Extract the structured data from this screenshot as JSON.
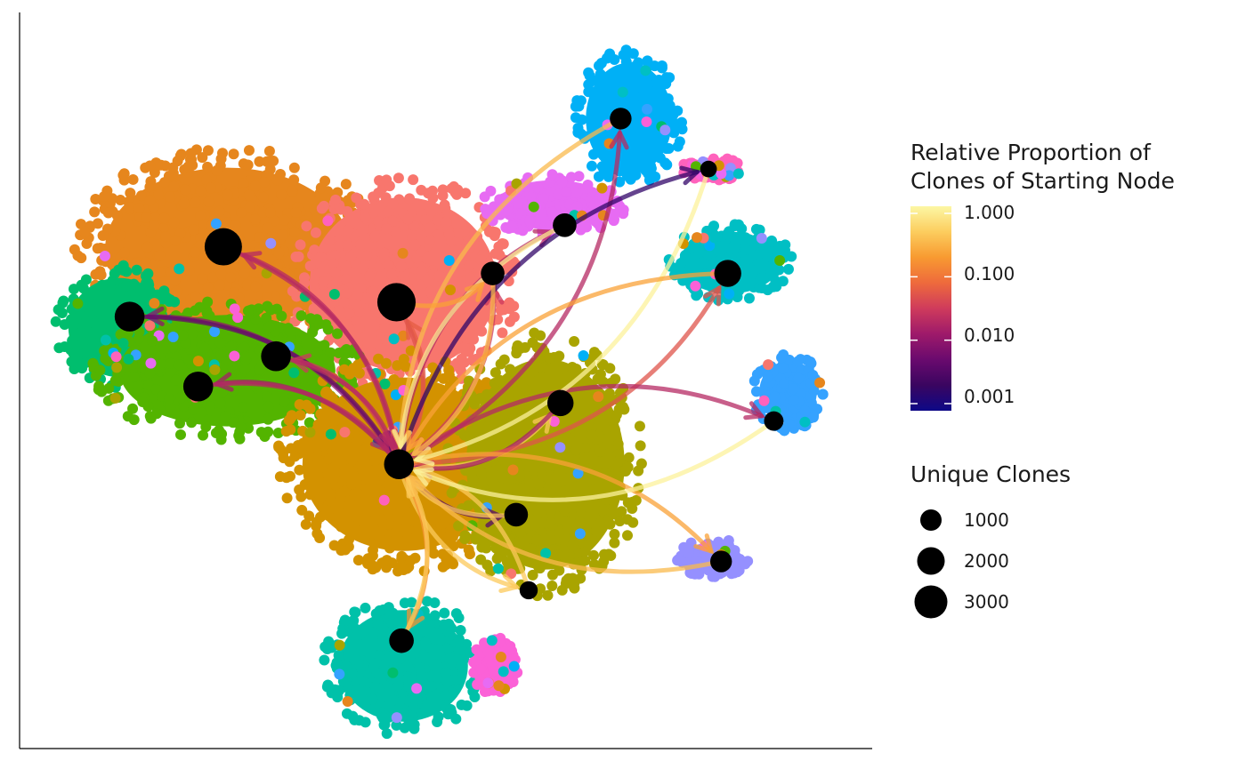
{
  "chart_data": {
    "type": "scatter",
    "title": "",
    "xlabel": "",
    "ylabel": "",
    "xlim": [
      0,
      100
    ],
    "ylim": [
      0,
      100
    ],
    "clusters": [
      {
        "color": "#E6861D",
        "shape": "blob",
        "cx": 24,
        "cy": 68,
        "rx": 17,
        "ry": 13
      },
      {
        "color": "#F8766D",
        "shape": "blob",
        "cx": 45,
        "cy": 63,
        "rx": 13,
        "ry": 14
      },
      {
        "color": "#00BE6E",
        "shape": "blob",
        "cx": 11,
        "cy": 57,
        "rx": 7,
        "ry": 8
      },
      {
        "color": "#53B400",
        "shape": "blob",
        "cx": 24,
        "cy": 51,
        "rx": 15,
        "ry": 9
      },
      {
        "color": "#D39200",
        "shape": "blob",
        "cx": 45,
        "cy": 38,
        "rx": 14,
        "ry": 14
      },
      {
        "color": "#A9A400",
        "shape": "blob",
        "cx": 62,
        "cy": 38,
        "rx": 11,
        "ry": 17
      },
      {
        "color": "#00C1A9",
        "shape": "blob",
        "cx": 45,
        "cy": 10,
        "rx": 9,
        "ry": 9
      },
      {
        "color": "#FB61D7",
        "shape": "blob",
        "cx": 56,
        "cy": 10,
        "rx": 2.5,
        "ry": 4
      },
      {
        "color": "#00B0F6",
        "shape": "blob",
        "cx": 72,
        "cy": 86,
        "rx": 6,
        "ry": 9
      },
      {
        "color": "#E76BF3",
        "shape": "blob",
        "cx": 63,
        "cy": 74,
        "rx": 8,
        "ry": 4
      },
      {
        "color": "#FF62BC",
        "shape": "blob",
        "cx": 82,
        "cy": 79,
        "rx": 3.5,
        "ry": 1.5
      },
      {
        "color": "#00BFC4",
        "shape": "blob",
        "cx": 84,
        "cy": 66,
        "rx": 7,
        "ry": 5
      },
      {
        "color": "#35A2FF",
        "shape": "blob",
        "cx": 91,
        "cy": 48,
        "rx": 4,
        "ry": 5
      },
      {
        "color": "#9590FF",
        "shape": "blob",
        "cx": 82,
        "cy": 25,
        "rx": 4,
        "ry": 2.5
      }
    ],
    "nodes": [
      {
        "id": "n1",
        "x": 23.5,
        "y": 68.2,
        "clones": 3000
      },
      {
        "id": "n2",
        "x": 44.2,
        "y": 60.5,
        "clones": 3200
      },
      {
        "id": "n3",
        "x": 12.3,
        "y": 58.5,
        "clones": 1700
      },
      {
        "id": "n4",
        "x": 29.8,
        "y": 53.0,
        "clones": 1700
      },
      {
        "id": "n5",
        "x": 20.5,
        "y": 48.8,
        "clones": 1700
      },
      {
        "id": "n6",
        "x": 44.5,
        "y": 38.0,
        "clones": 1700
      },
      {
        "id": "n7",
        "x": 63.8,
        "y": 46.5,
        "clones": 1200
      },
      {
        "id": "n8",
        "x": 55.7,
        "y": 64.5,
        "clones": 900
      },
      {
        "id": "n9",
        "x": 64.3,
        "y": 71.2,
        "clones": 900
      },
      {
        "id": "n10",
        "x": 71.0,
        "y": 86.0,
        "clones": 700
      },
      {
        "id": "n11",
        "x": 81.5,
        "y": 79.0,
        "clones": 300
      },
      {
        "id": "n12",
        "x": 83.8,
        "y": 64.5,
        "clones": 1300
      },
      {
        "id": "n13",
        "x": 89.3,
        "y": 44.0,
        "clones": 500
      },
      {
        "id": "n14",
        "x": 58.5,
        "y": 31.0,
        "clones": 900
      },
      {
        "id": "n15",
        "x": 83.0,
        "y": 24.5,
        "clones": 700
      },
      {
        "id": "n16",
        "x": 60.0,
        "y": 20.5,
        "clones": 400
      },
      {
        "id": "n17",
        "x": 44.8,
        "y": 13.5,
        "clones": 1000
      }
    ],
    "edges": [
      {
        "from": "n6",
        "to": "n1",
        "proportion": 0.02
      },
      {
        "from": "n1",
        "to": "n6",
        "proportion": 0.02
      },
      {
        "from": "n6",
        "to": "n2",
        "proportion": 0.06
      },
      {
        "from": "n2",
        "to": "n6",
        "proportion": 0.05
      },
      {
        "from": "n6",
        "to": "n3",
        "proportion": 0.01
      },
      {
        "from": "n3",
        "to": "n6",
        "proportion": 0.005
      },
      {
        "from": "n6",
        "to": "n4",
        "proportion": 0.03
      },
      {
        "from": "n4",
        "to": "n6",
        "proportion": 0.02
      },
      {
        "from": "n6",
        "to": "n5",
        "proportion": 0.015
      },
      {
        "from": "n5",
        "to": "n6",
        "proportion": 0.02
      },
      {
        "from": "n6",
        "to": "n7",
        "proportion": 0.4
      },
      {
        "from": "n7",
        "to": "n6",
        "proportion": 0.015
      },
      {
        "from": "n6",
        "to": "n8",
        "proportion": 0.03
      },
      {
        "from": "n6",
        "to": "n9",
        "proportion": 0.02
      },
      {
        "from": "n6",
        "to": "n10",
        "proportion": 0.02
      },
      {
        "from": "n6",
        "to": "n11",
        "proportion": 0.002
      },
      {
        "from": "n6",
        "to": "n12",
        "proportion": 0.05
      },
      {
        "from": "n6",
        "to": "n13",
        "proportion": 0.02
      },
      {
        "from": "n6",
        "to": "n14",
        "proportion": 0.004
      },
      {
        "from": "n6",
        "to": "n15",
        "proportion": 0.2
      },
      {
        "from": "n6",
        "to": "n16",
        "proportion": 0.4
      },
      {
        "from": "n6",
        "to": "n17",
        "proportion": 0.15
      },
      {
        "from": "n17",
        "to": "n6",
        "proportion": 0.4
      },
      {
        "from": "n14",
        "to": "n6",
        "proportion": 0.4
      },
      {
        "from": "n16",
        "to": "n6",
        "proportion": 0.4
      },
      {
        "from": "n15",
        "to": "n6",
        "proportion": 0.3
      },
      {
        "from": "n10",
        "to": "n6",
        "proportion": 0.3
      },
      {
        "from": "n11",
        "to": "n6",
        "proportion": 0.9
      },
      {
        "from": "n9",
        "to": "n6",
        "proportion": 0.8
      },
      {
        "from": "n8",
        "to": "n6",
        "proportion": 0.3
      },
      {
        "from": "n12",
        "to": "n6",
        "proportion": 0.2
      },
      {
        "from": "n13",
        "to": "n6",
        "proportion": 0.9
      },
      {
        "from": "n2",
        "to": "n8",
        "proportion": 0.2
      }
    ],
    "legend": {
      "color": {
        "title_line1": "Relative Proportion of",
        "title_line2": "Clones of Starting Node",
        "ticks": [
          {
            "label": "1.000",
            "value": 1.0
          },
          {
            "label": "0.100",
            "value": 0.1
          },
          {
            "label": "0.010",
            "value": 0.01
          },
          {
            "label": "0.001",
            "value": 0.001
          }
        ],
        "scale": "log",
        "palette": [
          "#0d0887",
          "#3a0560",
          "#6a0a6e",
          "#9e1a6a",
          "#cf3b5c",
          "#ee6a3c",
          "#f89a31",
          "#fccd5e",
          "#fcf7a4"
        ]
      },
      "size": {
        "title": "Unique Clones",
        "ticks": [
          {
            "label": "1000",
            "value": 1000
          },
          {
            "label": "2000",
            "value": 2000
          },
          {
            "label": "3000",
            "value": 3000
          }
        ]
      }
    },
    "grid": false,
    "legend_placement": "right"
  }
}
